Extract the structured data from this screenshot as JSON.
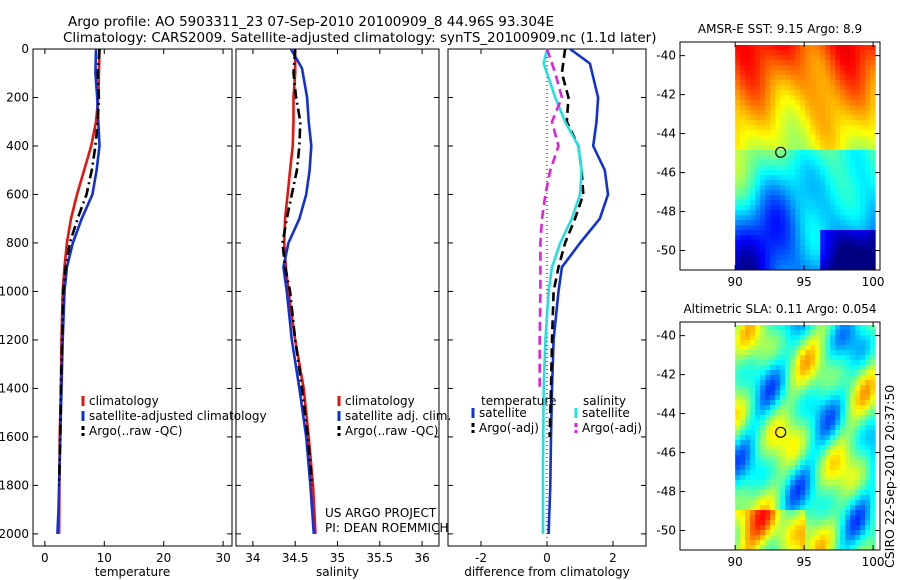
{
  "header": {
    "line1": "Argo profile: AO 5903311_23 07-Sep-2010 20100909_8 44.96S 93.304E",
    "line2": "Climatology: CARS2009. Satellite-adjusted climatology: synTS_20100909.nc (1.1d later)"
  },
  "side_label": "CSIRO 22-Sep-2010 20:37:50",
  "chart_data": [
    {
      "type": "line",
      "id": "temperature",
      "xlabel": "temperature",
      "ylabel": "",
      "xlim": [
        -2,
        31.5
      ],
      "ylim": [
        2050,
        0
      ],
      "xticks": [
        0,
        10,
        20,
        30
      ],
      "yticks": [
        0,
        200,
        400,
        600,
        800,
        1000,
        1200,
        1400,
        1600,
        1800,
        2000
      ],
      "series": [
        {
          "name": "climatology",
          "color": "#e8130e",
          "dash": "solid",
          "x": [
            9.2,
            9.1,
            9.0,
            8.6,
            7.8,
            6.6,
            5.4,
            4.4,
            3.7,
            3.3,
            3.0,
            2.8,
            2.7,
            2.6,
            2.5,
            2.45,
            2.4
          ],
          "y": [
            0,
            100,
            200,
            300,
            400,
            500,
            600,
            700,
            800,
            900,
            1000,
            1200,
            1400,
            1500,
            1600,
            1800,
            2000
          ]
        },
        {
          "name": "satellite-adjusted climatology",
          "color": "#1030d8",
          "dash": "solid",
          "x": [
            8.6,
            8.5,
            8.8,
            9.0,
            9.2,
            8.7,
            8.0,
            6.2,
            4.7,
            3.7,
            3.3,
            3.0,
            2.8,
            2.6,
            2.4,
            2.3,
            2.1
          ],
          "y": [
            0,
            100,
            200,
            300,
            400,
            500,
            600,
            700,
            800,
            900,
            1000,
            1200,
            1400,
            1600,
            1800,
            1900,
            2000
          ]
        },
        {
          "name": "Argo(..raw -QC)",
          "color": "#000000",
          "dash": "dashdot",
          "x": [
            9.2,
            8.9,
            9.1,
            8.9,
            8.5,
            7.9,
            7.0,
            5.5,
            4.2,
            3.5,
            3.1,
            2.9,
            2.7,
            2.6,
            2.4
          ],
          "y": [
            0,
            100,
            200,
            300,
            400,
            500,
            600,
            700,
            800,
            900,
            1000,
            1200,
            1400,
            1600,
            1800
          ]
        }
      ]
    },
    {
      "type": "line",
      "id": "salinity",
      "xlabel": "salinity",
      "ylabel": "",
      "xlim": [
        33.8,
        36.2
      ],
      "ylim": [
        2050,
        0
      ],
      "xticks": [
        34,
        34.5,
        35,
        35.5,
        36
      ],
      "xticklabels": [
        "34",
        "34.5",
        "35",
        "35.5",
        "36"
      ],
      "series": [
        {
          "name": "climatology",
          "color": "#e8130e",
          "dash": "solid",
          "x": [
            34.5,
            34.5,
            34.48,
            34.48,
            34.47,
            34.44,
            34.41,
            34.38,
            34.37,
            34.39,
            34.42,
            34.5,
            34.6,
            34.66,
            34.71,
            34.74
          ],
          "y": [
            0,
            100,
            200,
            300,
            400,
            500,
            600,
            700,
            800,
            900,
            1000,
            1200,
            1400,
            1600,
            1800,
            2000
          ]
        },
        {
          "name": "satellite adj. clim.",
          "color": "#1030d8",
          "dash": "solid",
          "x": [
            34.45,
            34.58,
            34.64,
            34.66,
            34.69,
            34.67,
            34.63,
            34.55,
            34.42,
            34.36,
            34.4,
            34.46,
            34.55,
            34.63,
            34.68,
            34.72
          ],
          "y": [
            0,
            80,
            200,
            300,
            400,
            500,
            600,
            700,
            800,
            900,
            1000,
            1200,
            1400,
            1600,
            1800,
            2000
          ]
        },
        {
          "name": "Argo(..raw -QC)",
          "color": "#000000",
          "dash": "dashdot",
          "x": [
            34.5,
            34.48,
            34.51,
            34.56,
            34.55,
            34.52,
            34.46,
            34.4,
            34.35,
            34.38,
            34.44,
            34.5,
            34.58,
            34.65,
            34.7
          ],
          "y": [
            0,
            100,
            200,
            300,
            400,
            500,
            600,
            700,
            800,
            900,
            1000,
            1200,
            1400,
            1600,
            1800
          ]
        }
      ],
      "annotations": [
        "US ARGO PROJECT",
        "PI: DEAN ROEMMICH"
      ]
    },
    {
      "type": "line",
      "id": "difference",
      "xlabel": "difference from climatology",
      "ylabel": "",
      "xlim": [
        -3,
        3
      ],
      "ylim": [
        2050,
        0
      ],
      "xticks": [
        -2,
        0,
        2
      ],
      "legend_titles": [
        "temperature",
        "salinity"
      ],
      "series": [
        {
          "name": "satellite",
          "group": "temperature",
          "color": "#1030d8",
          "dash": "solid",
          "x": [
            0.7,
            1.3,
            1.55,
            1.5,
            1.4,
            1.75,
            1.85,
            1.6,
            1.0,
            0.45,
            0.35,
            0.2,
            0.15,
            0.12,
            0.1,
            0.05
          ],
          "y": [
            0,
            60,
            200,
            300,
            400,
            500,
            600,
            700,
            800,
            900,
            1000,
            1200,
            1400,
            1600,
            1800,
            2000
          ]
        },
        {
          "name": "Argo(-adj)",
          "group": "temperature",
          "color": "#000000",
          "dash": "dashed",
          "x": [
            0.55,
            0.45,
            0.65,
            0.6,
            0.95,
            1.05,
            1.1,
            0.85,
            0.55,
            0.35,
            0.2,
            0.15,
            0.12,
            0.08
          ],
          "y": [
            0,
            100,
            200,
            300,
            400,
            500,
            600,
            700,
            800,
            900,
            1000,
            1200,
            1400,
            1600
          ]
        },
        {
          "name": "satellite",
          "group": "salinity",
          "color": "#22e0e0",
          "dash": "solid",
          "x": [
            0.0,
            -0.1,
            0.25,
            0.55,
            0.95,
            1.05,
            1.0,
            0.75,
            0.4,
            0.15,
            0.05,
            -0.05,
            -0.1,
            -0.12,
            -0.12
          ],
          "y": [
            0,
            60,
            200,
            300,
            400,
            500,
            600,
            700,
            800,
            900,
            1000,
            1200,
            1400,
            1700,
            2000
          ]
        },
        {
          "name": "Argo(-adj)",
          "group": "salinity",
          "color": "#e020e0",
          "dash": "dashed",
          "x": [
            0.0,
            0.25,
            0.45,
            0.15,
            0.35,
            0.1,
            -0.05,
            -0.15,
            -0.2,
            -0.2,
            -0.2,
            -0.22,
            -0.22
          ],
          "y": [
            0,
            100,
            200,
            300,
            400,
            500,
            600,
            700,
            800,
            900,
            1000,
            1200,
            1400
          ]
        }
      ],
      "zero_line": {
        "x": 0,
        "style": "dotted"
      }
    },
    {
      "type": "heatmap",
      "id": "sst_map",
      "title": "AMSR-E SST: 9.15 Argo: 8.9",
      "xlim": [
        86,
        100.5
      ],
      "ylim": [
        -51,
        -39.3
      ],
      "xticks": [
        90,
        95,
        100
      ],
      "yticks": [
        -40,
        -42,
        -44,
        -46,
        -48,
        -50
      ],
      "data_region_x": [
        90,
        100
      ],
      "marker": {
        "lon": 93.3,
        "lat": -44.96
      },
      "colormap": "jet"
    },
    {
      "type": "heatmap",
      "id": "sla_map",
      "title": "Altimetric SLA: 0.11 Argo: 0.054",
      "xlim": [
        86,
        100.5
      ],
      "ylim": [
        -51,
        -39.3
      ],
      "xticks": [
        90,
        95,
        100
      ],
      "yticks": [
        -40,
        -42,
        -44,
        -46,
        -48,
        -50
      ],
      "data_region_x": [
        90,
        100
      ],
      "marker": {
        "lon": 93.3,
        "lat": -44.96
      },
      "colormap": "jet"
    }
  ]
}
